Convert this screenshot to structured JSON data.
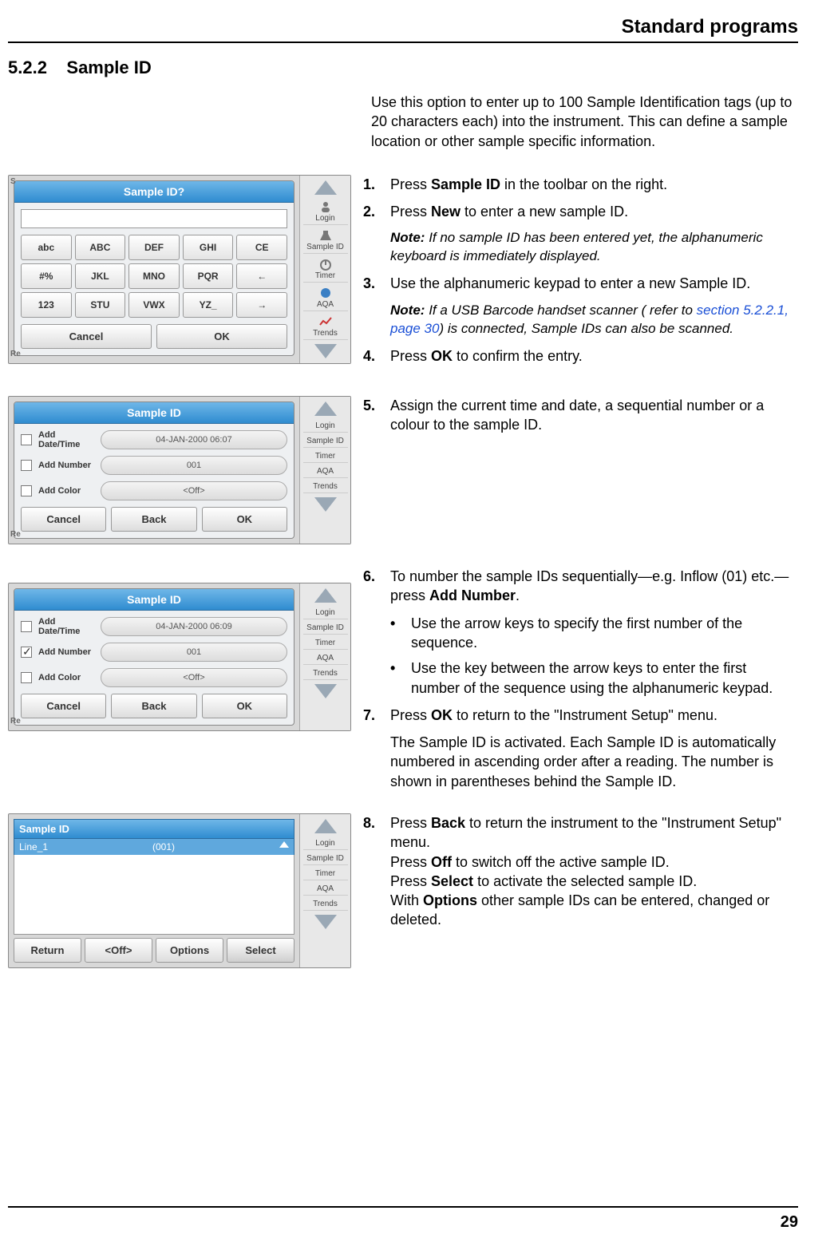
{
  "header": {
    "title": "Standard programs"
  },
  "section": {
    "number": "5.2.2",
    "title": "Sample ID"
  },
  "intro": "Use this option to enter up to 100 Sample Identification tags (up to 20 characters each) into the instrument. This can define  a sample location or other sample specific information.",
  "page_number": "29",
  "sidebar": {
    "items": [
      "Login",
      "Sample ID",
      "Timer",
      "AQA",
      "Trends"
    ]
  },
  "shot1": {
    "corner_top": "S",
    "corner_bot": "Re",
    "corner_right_bot": "ect",
    "title": "Sample ID?",
    "keys_row1": [
      "abc",
      "ABC",
      "DEF",
      "GHI",
      "CE"
    ],
    "keys_row2": [
      "#%",
      "JKL",
      "MNO",
      "PQR",
      "←"
    ],
    "keys_row3": [
      "123",
      "STU",
      "VWX",
      "YZ_",
      "→"
    ],
    "btn_cancel": "Cancel",
    "btn_ok": "OK"
  },
  "shot2": {
    "title": "Sample ID",
    "opt1_label": "Add Date/Time",
    "opt1_val": "04-JAN-2000 06:07",
    "opt1_checked": false,
    "opt2_label": "Add Number",
    "opt2_val": "001",
    "opt2_checked": false,
    "opt3_label": "Add Color",
    "opt3_val": "<Off>",
    "opt3_checked": false,
    "btn_cancel": "Cancel",
    "btn_back": "Back",
    "btn_ok": "OK"
  },
  "shot3": {
    "title": "Sample ID",
    "opt1_label": "Add Date/Time",
    "opt1_val": "04-JAN-2000 06:09",
    "opt1_checked": false,
    "opt2_label": "Add Number",
    "opt2_val": "001",
    "opt2_checked": true,
    "opt3_label": "Add Color",
    "opt3_val": "<Off>",
    "opt3_checked": false,
    "btn_cancel": "Cancel",
    "btn_back": "Back",
    "btn_ok": "OK"
  },
  "shot4": {
    "header": "Sample ID",
    "row_label": "Line_1",
    "row_val": "(001)",
    "btn_return": "Return",
    "btn_off": "<Off>",
    "btn_options": "Options",
    "btn_select": "Select"
  },
  "steps": {
    "s1": {
      "num": "1.",
      "html": "Press <b>Sample ID</b> in the toolbar on the right."
    },
    "s2": {
      "num": "2.",
      "html": "Press <b>New</b> to enter a new sample ID."
    },
    "note1": "If no sample ID has been entered yet, the alphanumeric keyboard is immediately displayed.",
    "s3": {
      "num": "3.",
      "text": "Use the alphanumeric keypad to enter a new Sample ID."
    },
    "note2_pre": "If a USB Barcode handset scanner ( refer to ",
    "note2_link": "section 5.2.2.1, page 30",
    "note2_post": ") is connected, Sample IDs can also be scanned.",
    "s4": {
      "num": "4.",
      "html": "Press <b>OK</b> to confirm the entry."
    },
    "s5": {
      "num": "5.",
      "text": "Assign the current time and date, a sequential number or a colour to the sample ID."
    },
    "s6": {
      "num": "6.",
      "html": "To number the sample IDs sequentially—e.g. Inflow (01) etc.—press <b>Add Number</b>."
    },
    "b6a": "Use the arrow keys to specify the first number of the sequence.",
    "b6b": "Use the key between the arrow keys to enter the first number of the sequence using the alphanumeric keypad.",
    "s7": {
      "num": "7.",
      "html": "Press <b>OK</b> to return to the \"Instrument Setup\" menu."
    },
    "s7_after": "The Sample ID is activated. Each Sample ID is automatically numbered in ascending order after a reading. The number is shown in parentheses behind the Sample ID.",
    "s8": {
      "num": "8.",
      "html": "Press <b>Back</b> to return the instrument to the \"Instrument Setup\" menu.<br>Press <b>Off</b> to switch off the active sample ID.<br>Press <b>Select</b> to activate the selected sample ID.<br>With <b>Options</b> other sample IDs can be entered, changed or deleted."
    }
  },
  "note_label": "Note:"
}
